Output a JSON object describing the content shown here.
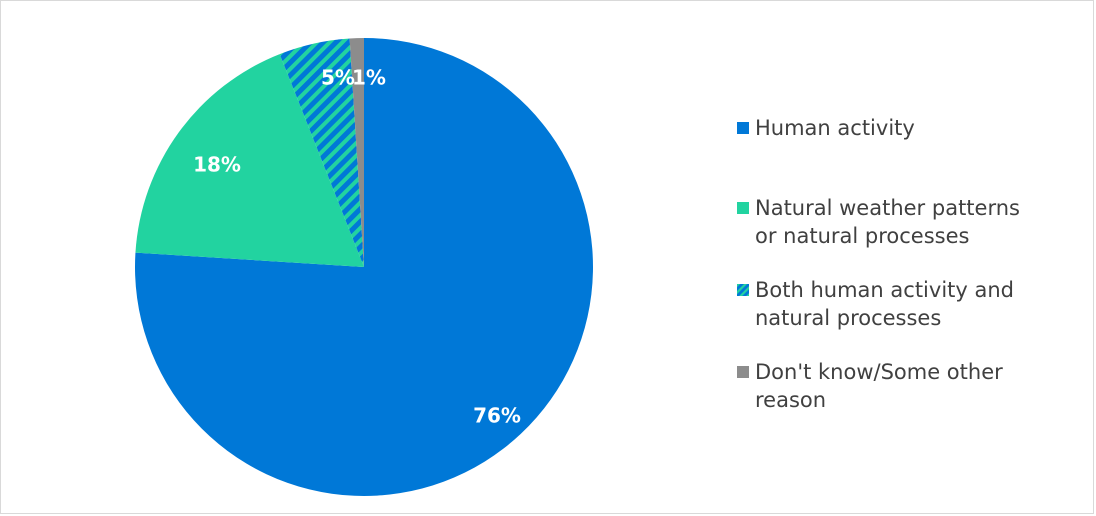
{
  "chart_data": {
    "type": "pie",
    "slices": [
      {
        "label": "Human activity",
        "value": 76,
        "display": "76%",
        "color": "#0078d7",
        "pattern": "solid"
      },
      {
        "label": "Natural weather patterns or natural processes",
        "value": 18,
        "display": "18%",
        "color": "#22d3a0",
        "pattern": "solid"
      },
      {
        "label": "Both human activity and natural processes",
        "value": 5,
        "display": "5%",
        "color": "#0078d7",
        "pattern": "diagonal-stripes",
        "stripe_color": "#22d3a0"
      },
      {
        "label": "Don't know/Some other reason",
        "value": 1,
        "display": "1%",
        "color": "#8c8c8c",
        "pattern": "solid"
      }
    ],
    "start_angle_degrees": 0,
    "direction": "clockwise",
    "legend_position": "right",
    "data_label_color": "#ffffff"
  },
  "legend": [
    {
      "text": "Human activity",
      "color": "#0078d7",
      "pattern": "solid"
    },
    {
      "text": "Natural weather patterns\nor natural processes",
      "color": "#22d3a0",
      "pattern": "solid"
    },
    {
      "text": "Both human activity and\nnatural processes",
      "color": "#0078d7",
      "pattern": "diagonal-stripes"
    },
    {
      "text": "Don't know/Some other\nreason",
      "color": "#8c8c8c",
      "pattern": "solid"
    }
  ]
}
